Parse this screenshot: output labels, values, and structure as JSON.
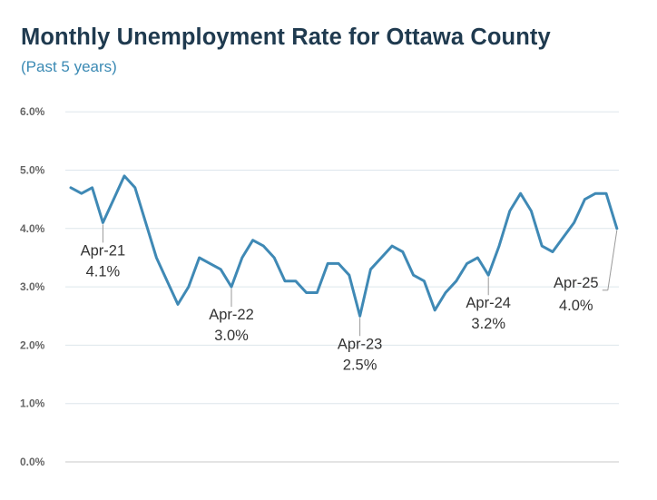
{
  "title": "Monthly Unemployment Rate for Ottawa County",
  "subtitle": "(Past 5 years)",
  "chart_data": {
    "type": "line",
    "title": "Monthly Unemployment Rate for Ottawa County",
    "subtitle": "(Past 5 years)",
    "xlabel": "",
    "ylabel": "",
    "ylim": [
      0,
      6
    ],
    "yticks": [
      "0.0%",
      "1.0%",
      "2.0%",
      "3.0%",
      "4.0%",
      "5.0%",
      "6.0%"
    ],
    "grid": true,
    "color": "#3f89b5",
    "values": [
      4.7,
      4.6,
      4.7,
      4.1,
      4.5,
      4.9,
      4.7,
      4.1,
      3.5,
      3.1,
      2.7,
      3.0,
      3.5,
      3.4,
      3.3,
      3.0,
      3.5,
      3.8,
      3.7,
      3.5,
      3.1,
      3.1,
      2.9,
      2.9,
      3.4,
      3.4,
      3.2,
      2.5,
      3.3,
      3.5,
      3.7,
      3.6,
      3.2,
      3.1,
      2.6,
      2.9,
      3.1,
      3.4,
      3.5,
      3.2,
      3.7,
      4.3,
      4.6,
      4.3,
      3.7,
      3.6,
      3.85,
      4.1,
      4.5,
      4.6,
      4.6,
      4.0
    ],
    "annotations": [
      {
        "index": 3,
        "month": "Apr-21",
        "value": "4.1%",
        "placement": "below"
      },
      {
        "index": 15,
        "month": "Apr-22",
        "value": "3.0%",
        "placement": "below"
      },
      {
        "index": 27,
        "month": "Apr-23",
        "value": "2.5%",
        "placement": "below"
      },
      {
        "index": 39,
        "month": "Apr-24",
        "value": "3.2%",
        "placement": "below"
      },
      {
        "index": 51,
        "month": "Apr-25",
        "value": "4.0%",
        "placement": "left"
      }
    ]
  }
}
